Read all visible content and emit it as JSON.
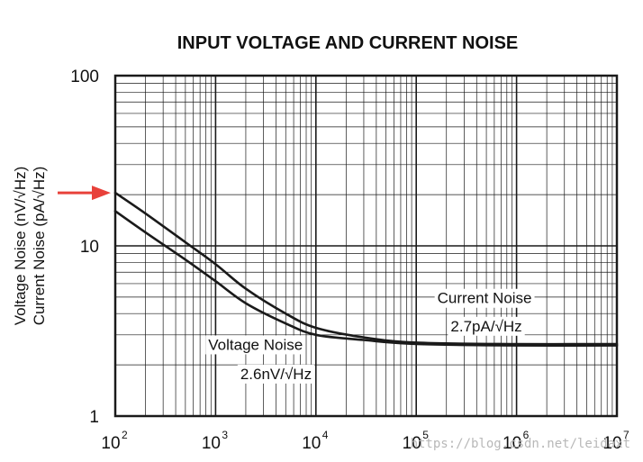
{
  "chart_data": {
    "type": "line",
    "title": "INPUT VOLTAGE AND CURRENT NOISE",
    "ylabel_lines": [
      "Voltage Noise (nV/√Hz)",
      "Current Noise (pA/√Hz)"
    ],
    "x_scale": "log",
    "y_scale": "log",
    "xlim": [
      100,
      10000000
    ],
    "ylim": [
      1,
      100
    ],
    "x_tick_labels": [
      {
        "base": "10",
        "exp": "2",
        "value": 100
      },
      {
        "base": "10",
        "exp": "3",
        "value": 1000
      },
      {
        "base": "10",
        "exp": "4",
        "value": 10000
      },
      {
        "base": "10",
        "exp": "5",
        "value": 100000
      },
      {
        "base": "10",
        "exp": "6",
        "value": 1000000
      },
      {
        "base": "10",
        "exp": "7",
        "value": 10000000
      }
    ],
    "y_tick_labels": [
      {
        "label": "1",
        "value": 1
      },
      {
        "label": "10",
        "value": 10
      },
      {
        "label": "100",
        "value": 100
      }
    ],
    "grid": true,
    "series": [
      {
        "name": "Current Noise",
        "color": "#1a1a1a",
        "x": [
          100,
          200,
          500,
          1000,
          2000,
          5000,
          10000,
          30000,
          100000,
          1000000,
          10000000
        ],
        "y": [
          20.5,
          15.5,
          10.5,
          7.8,
          5.6,
          4.0,
          3.3,
          2.9,
          2.7,
          2.65,
          2.65
        ]
      },
      {
        "name": "Voltage Noise",
        "color": "#1a1a1a",
        "x": [
          100,
          200,
          500,
          1000,
          2000,
          5000,
          10000,
          30000,
          100000,
          1000000,
          10000000
        ],
        "y": [
          16.0,
          12.0,
          8.3,
          6.2,
          4.6,
          3.5,
          3.0,
          2.8,
          2.65,
          2.6,
          2.6
        ]
      }
    ],
    "annotations": [
      {
        "name": "current-noise-label",
        "text": "Current Noise",
        "x": 480000,
        "y": 4.6
      },
      {
        "name": "current-noise-value",
        "text": "2.7pA/√Hz",
        "x": 500000,
        "y": 3.15
      },
      {
        "name": "voltage-noise-label",
        "text": "Voltage Noise",
        "x": 2500,
        "y": 2.45
      },
      {
        "name": "voltage-noise-value",
        "text": "2.6nV/√Hz",
        "x": 4000,
        "y": 1.65
      }
    ],
    "marker_color": "#e8413a"
  },
  "watermark": "https://blog.csdn.net/leidaxt"
}
